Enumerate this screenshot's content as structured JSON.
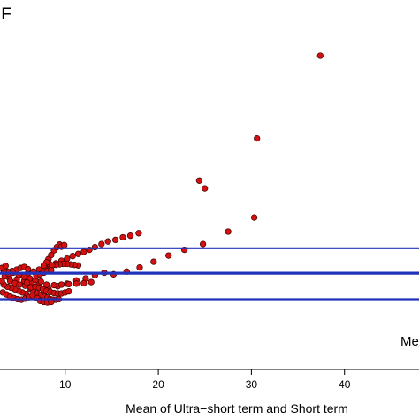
{
  "chart_data": {
    "type": "scatter",
    "title": "IF",
    "xlabel": "Mean of Ultra−short term and Short term",
    "ylabel": "",
    "xlim": [
      3,
      48
    ],
    "ylim": [
      -16,
      55
    ],
    "x_ticks": [
      10,
      20,
      30,
      40
    ],
    "x_tick_labels": [
      "10",
      "20",
      "30",
      "40"
    ],
    "grid": false,
    "colors": {
      "point_fill": "#d41010",
      "point_edge": "#3a0000",
      "line": "#2233bb"
    },
    "reference_lines": [
      {
        "y": -2.5,
        "label": ""
      },
      {
        "y": 2.5,
        "label": "Me"
      },
      {
        "y": 7.3,
        "label": ""
      }
    ],
    "series": [
      {
        "name": "",
        "points": [
          [
            37.4,
            44.3
          ],
          [
            30.6,
            28.4
          ],
          [
            24.4,
            20.3
          ],
          [
            25.0,
            18.8
          ],
          [
            30.3,
            13.2
          ],
          [
            27.5,
            10.5
          ],
          [
            24.8,
            8.1
          ],
          [
            22.8,
            7.0
          ],
          [
            21.1,
            5.9
          ],
          [
            19.5,
            4.7
          ],
          [
            18.0,
            3.6
          ],
          [
            16.6,
            2.8
          ],
          [
            15.2,
            2.3
          ],
          [
            14.2,
            2.6
          ],
          [
            13.2,
            2.1
          ],
          [
            12.2,
            1.5
          ],
          [
            11.2,
            1.1
          ],
          [
            10.2,
            0.5
          ],
          [
            9.2,
            0.0
          ],
          [
            8.2,
            -0.5
          ],
          [
            17.9,
            10.2
          ],
          [
            17.0,
            9.7
          ],
          [
            16.2,
            9.4
          ],
          [
            15.4,
            8.9
          ],
          [
            14.6,
            8.6
          ],
          [
            13.9,
            8.1
          ],
          [
            13.2,
            7.5
          ],
          [
            12.6,
            7.0
          ],
          [
            12.0,
            6.6
          ],
          [
            11.4,
            6.2
          ],
          [
            10.8,
            5.8
          ],
          [
            10.2,
            5.3
          ],
          [
            9.6,
            4.9
          ],
          [
            9.0,
            4.4
          ],
          [
            8.4,
            4.0
          ],
          [
            7.8,
            3.6
          ],
          [
            7.2,
            3.2
          ],
          [
            6.6,
            2.8
          ],
          [
            6.0,
            2.5
          ],
          [
            5.4,
            2.1
          ],
          [
            8.2,
            5.2
          ],
          [
            8.5,
            6.0
          ],
          [
            8.8,
            6.9
          ],
          [
            9.1,
            7.5
          ],
          [
            9.4,
            8.0
          ],
          [
            9.6,
            7.6
          ],
          [
            9.9,
            7.9
          ],
          [
            8.3,
            4.3
          ],
          [
            8.0,
            4.6
          ],
          [
            7.7,
            4.0
          ],
          [
            11.4,
            4.0
          ],
          [
            11.0,
            4.1
          ],
          [
            10.6,
            4.2
          ],
          [
            10.2,
            4.3
          ],
          [
            9.8,
            4.3
          ],
          [
            9.4,
            4.2
          ],
          [
            9.0,
            4.1
          ],
          [
            8.6,
            4.0
          ],
          [
            12.8,
            0.8
          ],
          [
            12.0,
            0.6
          ],
          [
            11.2,
            0.5
          ],
          [
            10.4,
            0.4
          ],
          [
            9.6,
            0.3
          ],
          [
            8.8,
            0.2
          ],
          [
            8.0,
            0.3
          ],
          [
            7.2,
            0.5
          ],
          [
            6.4,
            0.8
          ],
          [
            5.6,
            1.0
          ],
          [
            4.8,
            1.3
          ],
          [
            4.0,
            1.6
          ],
          [
            6.2,
            -0.5
          ],
          [
            6.6,
            -1.0
          ],
          [
            7.0,
            -1.4
          ],
          [
            7.4,
            -1.7
          ],
          [
            7.8,
            -2.0
          ],
          [
            8.1,
            -2.2
          ],
          [
            8.4,
            -2.5
          ],
          [
            8.7,
            -2.6
          ],
          [
            9.0,
            -2.6
          ],
          [
            9.3,
            -2.5
          ],
          [
            5.8,
            -1.5
          ],
          [
            5.4,
            -1.2
          ],
          [
            5.0,
            -0.9
          ],
          [
            4.6,
            -0.6
          ],
          [
            4.2,
            -0.3
          ],
          [
            3.8,
            -0.1
          ],
          [
            3.4,
            0.3
          ],
          [
            3.2,
            1.0
          ],
          [
            3.5,
            1.9
          ],
          [
            3.9,
            2.4
          ],
          [
            4.3,
            2.9
          ],
          [
            4.8,
            3.2
          ],
          [
            5.2,
            3.5
          ],
          [
            5.6,
            3.7
          ],
          [
            6.0,
            3.3
          ],
          [
            7.4,
            0.9
          ],
          [
            6.8,
            1.2
          ],
          [
            6.2,
            1.5
          ],
          [
            5.6,
            1.8
          ],
          [
            5.0,
            2.2
          ],
          [
            4.4,
            2.6
          ],
          [
            3.8,
            2.8
          ],
          [
            3.4,
            3.1
          ],
          [
            3.2,
            3.5
          ],
          [
            3.6,
            3.9
          ],
          [
            6.9,
            2.0
          ],
          [
            7.3,
            2.3
          ],
          [
            7.7,
            2.6
          ],
          [
            8.1,
            2.9
          ],
          [
            8.5,
            3.1
          ],
          [
            4.1,
            1.0
          ],
          [
            4.6,
            0.6
          ],
          [
            5.1,
            0.3
          ],
          [
            5.7,
            0.1
          ],
          [
            6.3,
            -0.2
          ],
          [
            6.8,
            -0.1
          ],
          [
            7.2,
            -0.3
          ],
          [
            7.6,
            -0.6
          ],
          [
            8.0,
            -0.9
          ],
          [
            8.4,
            -1.1
          ],
          [
            8.8,
            -1.3
          ],
          [
            9.2,
            -1.4
          ],
          [
            9.6,
            -1.4
          ],
          [
            10.0,
            -1.2
          ],
          [
            10.4,
            -1.0
          ],
          [
            7.0,
            -2.3
          ],
          [
            7.3,
            -2.8
          ],
          [
            7.7,
            -3.0
          ],
          [
            8.1,
            -3.1
          ],
          [
            8.5,
            -3.0
          ],
          [
            3.3,
            -1.2
          ],
          [
            3.7,
            -1.6
          ],
          [
            4.1,
            -2.0
          ],
          [
            4.5,
            -2.3
          ],
          [
            4.9,
            -2.5
          ],
          [
            5.3,
            -2.6
          ],
          [
            5.7,
            -2.4
          ],
          [
            6.1,
            -2.1
          ],
          [
            6.5,
            -1.8
          ],
          [
            5.9,
            0.7
          ]
        ]
      }
    ]
  }
}
